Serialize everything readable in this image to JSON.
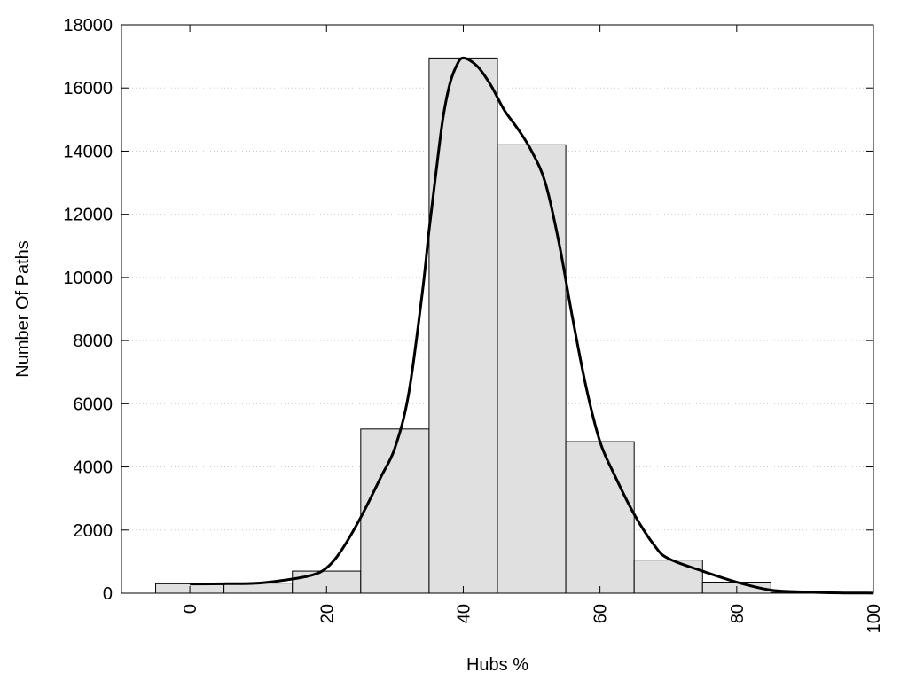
{
  "chart_data": {
    "type": "bar",
    "title": "",
    "xlabel": "Hubs %",
    "ylabel": "Number Of Paths",
    "xlim": [
      -10,
      100
    ],
    "ylim": [
      0,
      18000
    ],
    "xticks": [
      "0",
      "20",
      "40",
      "60",
      "80",
      "100"
    ],
    "yticks": [
      "0",
      "2000",
      "4000",
      "6000",
      "8000",
      "10000",
      "12000",
      "14000",
      "16000",
      "18000"
    ],
    "grid": "horizontal dotted",
    "bar_color": "#e0e0e0",
    "line_color": "#000000",
    "bin_width": 10,
    "bins": [
      {
        "x": 0,
        "value": 300
      },
      {
        "x": 10,
        "value": 320
      },
      {
        "x": 20,
        "value": 700
      },
      {
        "x": 30,
        "value": 5200
      },
      {
        "x": 40,
        "value": 16950
      },
      {
        "x": 50,
        "value": 14200
      },
      {
        "x": 60,
        "value": 4800
      },
      {
        "x": 70,
        "value": 1050
      },
      {
        "x": 80,
        "value": 350
      },
      {
        "x": 90,
        "value": 30
      },
      {
        "x": 100,
        "value": 10
      }
    ],
    "curve": {
      "x": [
        0,
        5,
        10,
        15,
        18,
        20,
        22,
        25,
        28,
        30,
        32,
        34,
        35,
        36,
        37,
        38,
        39,
        40,
        42,
        44,
        46,
        48,
        50,
        52,
        54,
        56,
        58,
        60,
        62,
        65,
        68,
        70,
        75,
        80,
        85,
        90,
        95,
        100
      ],
      "y": [
        290,
        300,
        320,
        450,
        580,
        800,
        1300,
        2400,
        3700,
        4600,
        6300,
        9500,
        11500,
        13300,
        15000,
        16100,
        16700,
        16950,
        16700,
        16100,
        15300,
        14700,
        14000,
        13000,
        11100,
        8700,
        6500,
        4800,
        3800,
        2500,
        1500,
        1100,
        700,
        350,
        100,
        40,
        10,
        5
      ]
    }
  }
}
